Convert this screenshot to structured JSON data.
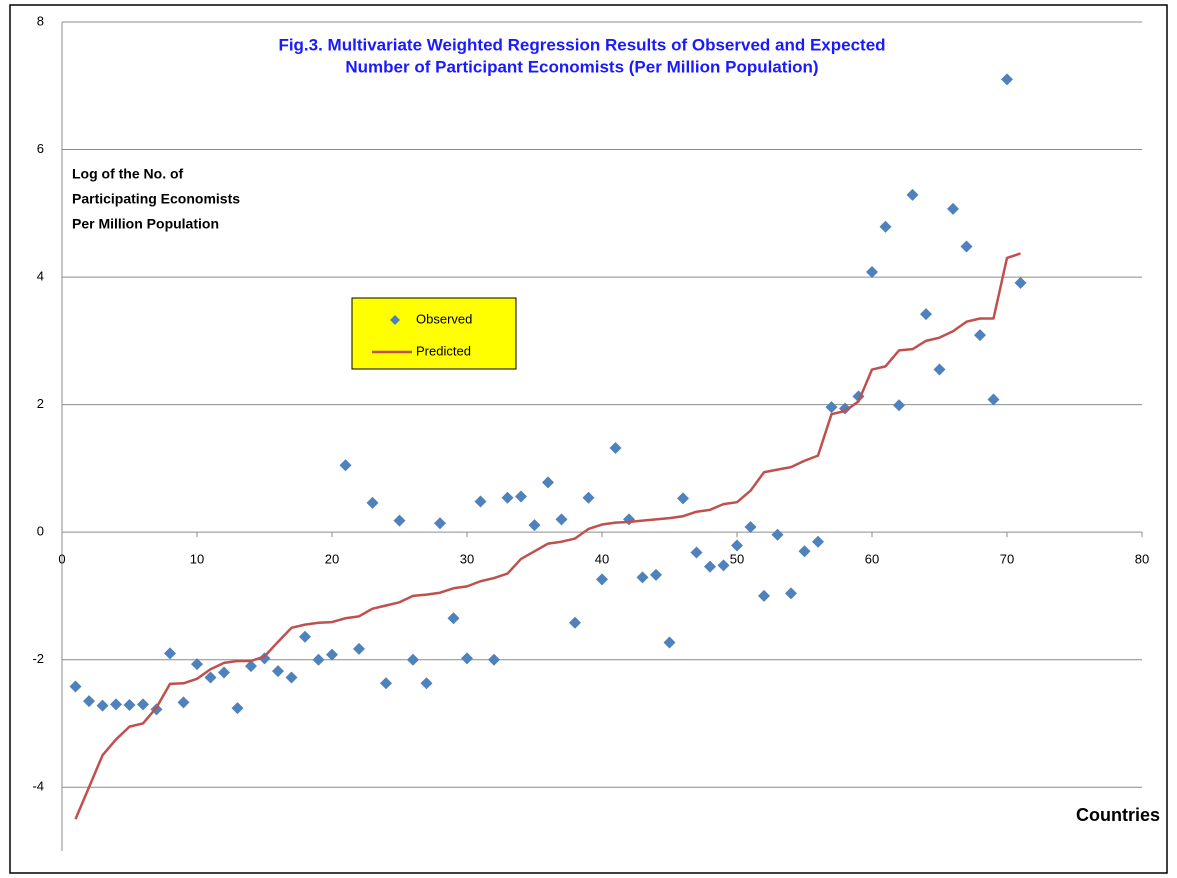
{
  "chart_data": {
    "type": "scatter_line",
    "title": [
      "Fig.3. Multivariate  Weighted Regression Results of Observed and Expected",
      "Number of Participant Economists (Per Million  Population)"
    ],
    "ylabel": [
      "Log of the No. of",
      "Participating Economists",
      "Per Million Population"
    ],
    "xlabel": "Countries",
    "x": [
      1,
      2,
      3,
      4,
      5,
      6,
      7,
      8,
      9,
      10,
      11,
      12,
      13,
      14,
      15,
      16,
      17,
      18,
      19,
      20,
      21,
      22,
      23,
      24,
      25,
      26,
      27,
      28,
      29,
      30,
      31,
      32,
      33,
      34,
      35,
      36,
      37,
      38,
      39,
      40,
      41,
      42,
      43,
      44,
      45,
      46,
      47,
      48,
      49,
      50,
      51,
      52,
      53,
      54,
      55,
      56,
      57,
      58,
      59,
      60,
      61,
      62,
      63,
      64,
      65,
      66,
      67,
      68,
      69,
      70,
      71
    ],
    "series": [
      {
        "name": "Observed",
        "color": "#4f81bd",
        "marker": "diamond",
        "values": [
          -2.42,
          -2.65,
          -2.72,
          -2.7,
          -2.71,
          -2.7,
          -2.78,
          -1.9,
          -2.67,
          -2.07,
          -2.28,
          -2.2,
          -2.76,
          -2.1,
          -1.98,
          -2.18,
          -2.28,
          -1.64,
          -2.0,
          -1.92,
          1.05,
          -1.83,
          0.46,
          -2.37,
          0.18,
          -2.0,
          -2.37,
          0.14,
          -1.35,
          -1.98,
          0.48,
          -2.0,
          0.54,
          0.56,
          0.11,
          0.78,
          0.2,
          -1.42,
          0.54,
          -0.74,
          1.32,
          0.2,
          -0.71,
          -0.67,
          -1.73,
          0.53,
          -0.32,
          -0.54,
          -0.52,
          -0.21,
          0.08,
          -1.0,
          -0.04,
          -0.96,
          -0.3,
          -0.15,
          1.96,
          1.94,
          2.13,
          4.08,
          4.79,
          1.99,
          5.29,
          3.42,
          2.55,
          5.07,
          4.48,
          3.09,
          2.08,
          7.1,
          3.91
        ]
      },
      {
        "name": "Predicted",
        "color": "#c0504d",
        "marker": "line",
        "values": [
          -4.5,
          -4.0,
          -3.5,
          -3.25,
          -3.05,
          -3.0,
          -2.75,
          -2.38,
          -2.37,
          -2.3,
          -2.15,
          -2.05,
          -2.02,
          -2.02,
          -1.95,
          -1.72,
          -1.5,
          -1.45,
          -1.42,
          -1.41,
          -1.35,
          -1.32,
          -1.2,
          -1.15,
          -1.1,
          -1.0,
          -0.98,
          -0.95,
          -0.88,
          -0.85,
          -0.77,
          -0.72,
          -0.65,
          -0.42,
          -0.3,
          -0.18,
          -0.15,
          -0.1,
          0.05,
          0.12,
          0.15,
          0.16,
          0.18,
          0.2,
          0.22,
          0.25,
          0.32,
          0.35,
          0.44,
          0.47,
          0.65,
          0.94,
          0.98,
          1.02,
          1.12,
          1.2,
          1.85,
          1.9,
          2.05,
          2.55,
          2.6,
          2.85,
          2.87,
          3.0,
          3.05,
          3.15,
          3.3,
          3.35,
          3.35,
          4.3,
          4.37
        ]
      }
    ],
    "xlim": [
      0,
      80
    ],
    "xticks": [
      0,
      10,
      20,
      30,
      40,
      50,
      60,
      70,
      80
    ],
    "ylim": [
      -5,
      8
    ],
    "yticks": [
      -4,
      -2,
      0,
      2,
      4,
      6,
      8
    ],
    "grid": true,
    "legend_color": "#ffff00"
  }
}
